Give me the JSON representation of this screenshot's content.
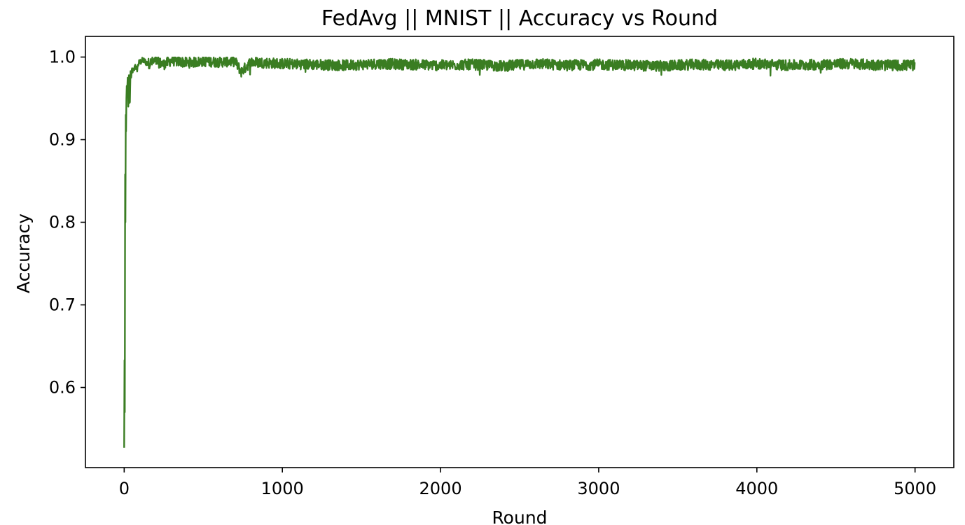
{
  "chart_data": {
    "type": "line",
    "title": "FedAvg || MNIST || Accuracy vs Round",
    "xlabel": "Round",
    "ylabel": "Accuracy",
    "xlim": [
      -245,
      5245
    ],
    "ylim": [
      0.503,
      1.025
    ],
    "xticks": [
      0,
      1000,
      2000,
      3000,
      4000,
      5000
    ],
    "xtick_labels": [
      "0",
      "1000",
      "2000",
      "3000",
      "4000",
      "5000"
    ],
    "yticks": [
      0.6,
      0.7,
      0.8,
      0.9,
      1.0
    ],
    "ytick_labels": [
      "0.6",
      "0.7",
      "0.8",
      "0.9",
      "1.0"
    ],
    "grid": false,
    "legend": "none",
    "series": [
      {
        "color": "#3a7d22",
        "x": [
          0,
          2,
          4,
          6,
          8,
          10,
          12,
          15,
          18,
          22,
          26,
          30,
          35,
          40,
          45,
          50,
          60,
          70,
          80,
          90,
          100,
          120,
          150,
          200,
          250,
          300,
          400,
          500,
          600,
          700,
          740,
          800,
          900,
          1000,
          1200,
          1400,
          1600,
          1800,
          2000,
          2200,
          2400,
          2600,
          2800,
          3000,
          3200,
          3400,
          3600,
          3800,
          4000,
          4200,
          4400,
          4600,
          4800,
          5000
        ],
        "y": [
          0.527,
          0.633,
          0.57,
          0.858,
          0.8,
          0.93,
          0.91,
          0.97,
          0.955,
          0.975,
          0.94,
          0.978,
          0.936,
          0.983,
          0.975,
          0.985,
          0.982,
          0.99,
          0.984,
          0.992,
          0.994,
          0.996,
          0.992,
          0.995,
          0.991,
          0.996,
          0.993,
          0.995,
          0.994,
          0.995,
          0.982,
          0.994,
          0.993,
          0.992,
          0.991,
          0.99,
          0.992,
          0.991,
          0.99,
          0.991,
          0.989,
          0.992,
          0.99,
          0.991,
          0.99,
          0.989,
          0.991,
          0.99,
          0.992,
          0.99,
          0.991,
          0.992,
          0.99,
          0.99
        ]
      }
    ]
  }
}
